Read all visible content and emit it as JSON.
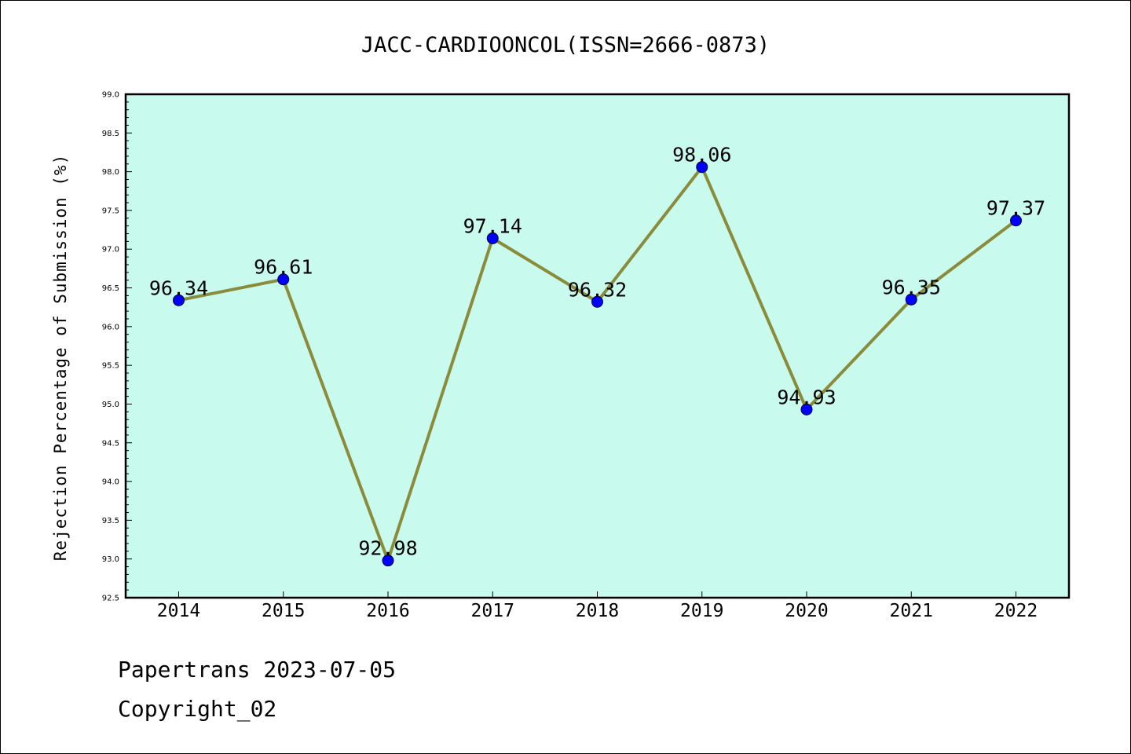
{
  "chart_data": {
    "type": "line",
    "title": "JACC-CARDIOONCOL(ISSN=2666-0873)",
    "ylabel": "Rejection Percentage of Submission (%)",
    "xlabel": "",
    "categories": [
      "2014",
      "2015",
      "2016",
      "2017",
      "2018",
      "2019",
      "2020",
      "2021",
      "2022"
    ],
    "series": [
      {
        "values": [
          96.34,
          96.61,
          92.98,
          97.14,
          96.32,
          98.06,
          94.93,
          96.35,
          97.37
        ]
      }
    ],
    "data_labels": [
      "96.34",
      "96.61",
      "92.98",
      "97.14",
      "96.32",
      "98.06",
      "94.93",
      "96.35",
      "97.37"
    ],
    "ylim": [
      92.5,
      99.0
    ],
    "yticks": [
      "92.5",
      "93.0",
      "93.5",
      "94.0",
      "94.5",
      "95.0",
      "95.5",
      "96.0",
      "96.5",
      "97.0",
      "97.5",
      "98.0",
      "98.5",
      "99.0"
    ],
    "grid": false,
    "colors": {
      "plot_background": "#c8fbee",
      "line": "#8b8b3c",
      "marker": "#0000ff"
    }
  },
  "footer": {
    "line1": "Papertrans 2023-07-05",
    "line2": "Copyright_02"
  }
}
